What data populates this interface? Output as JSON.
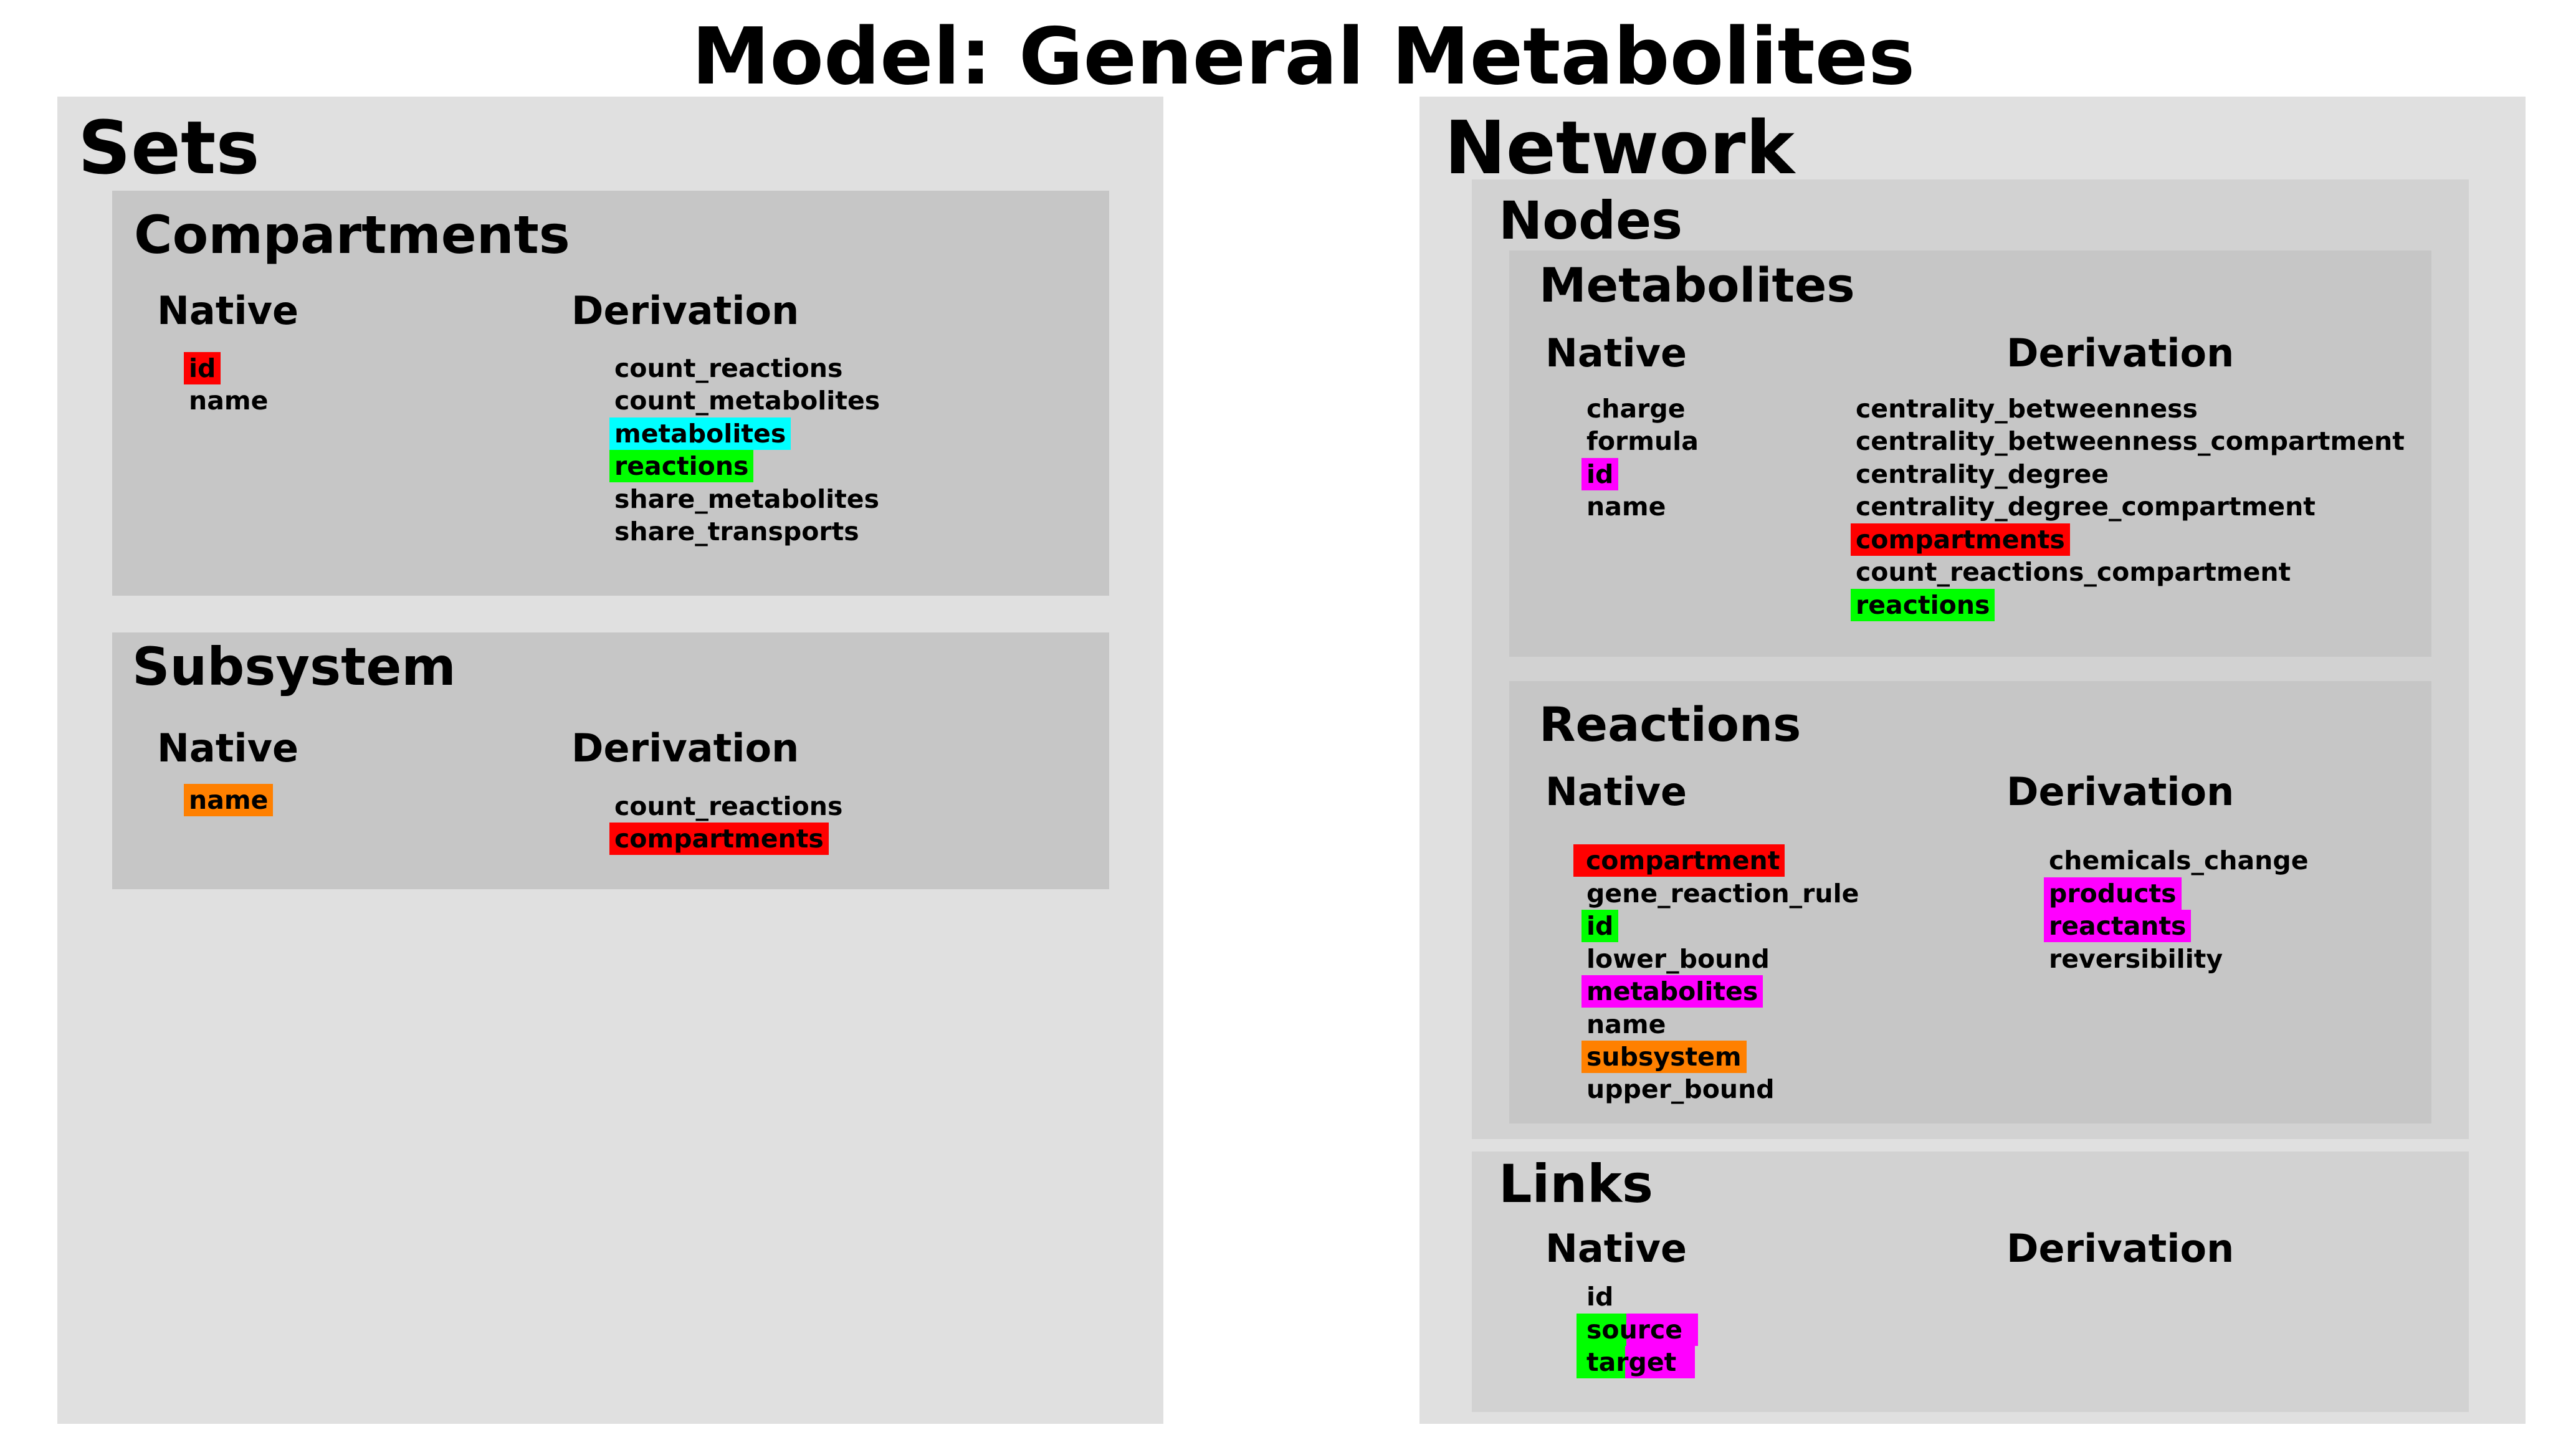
{
  "title": "Model: General Metabolites",
  "sets": {
    "label": "Sets",
    "compartments": {
      "label": "Compartments",
      "native_label": "Native",
      "derivation_label": "Derivation",
      "native": [
        {
          "text": "id",
          "highlight": "#ff0000"
        },
        {
          "text": "name",
          "highlight": null
        }
      ],
      "derivation": [
        {
          "text": "count_reactions",
          "highlight": null
        },
        {
          "text": "count_metabolites",
          "highlight": null
        },
        {
          "text": "metabolites",
          "highlight": "#00ffff"
        },
        {
          "text": "reactions",
          "highlight": "#00ff00"
        },
        {
          "text": "share_metabolites",
          "highlight": null
        },
        {
          "text": "share_transports",
          "highlight": null
        }
      ]
    },
    "subsystem": {
      "label": "Subsystem",
      "native_label": "Native",
      "derivation_label": "Derivation",
      "native": [
        {
          "text": "name",
          "highlight": "#ff8000"
        }
      ],
      "derivation": [
        {
          "text": "count_reactions",
          "highlight": null
        },
        {
          "text": "compartments",
          "highlight": "#ff0000"
        }
      ]
    }
  },
  "network": {
    "label": "Network",
    "nodes": {
      "label": "Nodes",
      "metabolites": {
        "label": "Metabolites",
        "native_label": "Native",
        "derivation_label": "Derivation",
        "native": [
          {
            "text": "charge",
            "highlight": null
          },
          {
            "text": "formula",
            "highlight": null
          },
          {
            "text": "id",
            "highlight": "#ff00ff"
          },
          {
            "text": "name",
            "highlight": null
          }
        ],
        "derivation": [
          {
            "text": "centrality_betweenness",
            "highlight": null
          },
          {
            "text": "centrality_betweenness_compartment",
            "highlight": null
          },
          {
            "text": "centrality_degree",
            "highlight": null
          },
          {
            "text": "centrality_degree_compartment",
            "highlight": null
          },
          {
            "text": "compartments",
            "highlight": "#ff0000"
          },
          {
            "text": "count_reactions_compartment",
            "highlight": null
          },
          {
            "text": "reactions",
            "highlight": "#00ff00"
          }
        ]
      },
      "reactions": {
        "label": "Reactions",
        "native_label": "Native",
        "derivation_label": "Derivation",
        "native": [
          {
            "text": "compartment",
            "highlight": "#ff0000"
          },
          {
            "text": "gene_reaction_rule",
            "highlight": null
          },
          {
            "text": "id",
            "highlight": "#00ff00"
          },
          {
            "text": "lower_bound",
            "highlight": null
          },
          {
            "text": "metabolites",
            "highlight": "#ff00ff"
          },
          {
            "text": "name",
            "highlight": null
          },
          {
            "text": "subsystem",
            "highlight": "#ff8000"
          },
          {
            "text": "upper_bound",
            "highlight": null
          }
        ],
        "derivation": [
          {
            "text": "chemicals_change",
            "highlight": null
          },
          {
            "text": "products",
            "highlight": "#ff00ff"
          },
          {
            "text": "reactants",
            "highlight": "#ff00ff"
          },
          {
            "text": "reversibility",
            "highlight": null
          }
        ]
      }
    },
    "links": {
      "label": "Links",
      "native_label": "Native",
      "derivation_label": "Derivation",
      "native": [
        {
          "text": "id",
          "highlight": null
        },
        {
          "text": "source",
          "highlight": "#00ff00 / #ff00ff"
        },
        {
          "text": "target",
          "highlight": "#00ff00 / #ff00ff"
        }
      ],
      "derivation": []
    }
  }
}
